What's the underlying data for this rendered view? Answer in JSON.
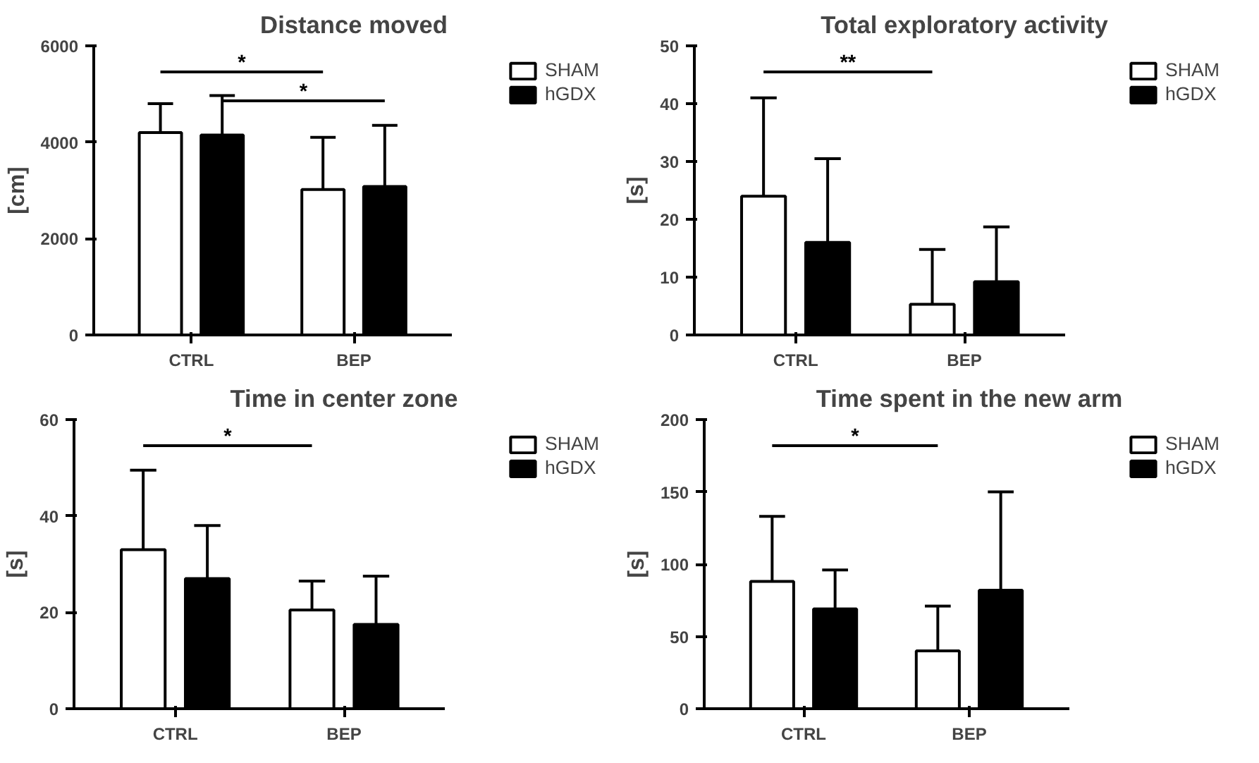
{
  "chart_data": [
    {
      "type": "bar",
      "title": "Distance moved",
      "ylabel": "[cm]",
      "categories": [
        "CTRL",
        "BEP"
      ],
      "ylim": [
        0,
        6000
      ],
      "yticks": [
        0,
        2000,
        4000,
        6000
      ],
      "legend": "top right",
      "grid": false,
      "annotations": [
        "*",
        "*"
      ],
      "series": [
        {
          "name": "SHAM",
          "color": "#ffffff",
          "values": [
            4200,
            3020
          ],
          "errors": [
            [
              4200,
              4800
            ],
            [
              3020,
              4100
            ]
          ]
        },
        {
          "name": "hGDX",
          "color": "#000000",
          "values": [
            4150,
            3080
          ],
          "errors": [
            [
              4150,
              4970
            ],
            [
              3080,
              4350
            ]
          ]
        }
      ]
    },
    {
      "type": "bar",
      "title": "Total exploratory activity",
      "ylabel": "[s]",
      "categories": [
        "CTRL",
        "BEP"
      ],
      "ylim": [
        0,
        50
      ],
      "yticks": [
        0,
        10,
        20,
        30,
        40,
        50
      ],
      "legend": "top right",
      "grid": false,
      "annotations": [
        "**"
      ],
      "series": [
        {
          "name": "SHAM",
          "color": "#ffffff",
          "values": [
            24,
            5.3
          ],
          "errors": [
            [
              24,
              41
            ],
            [
              5.3,
              14.8
            ]
          ]
        },
        {
          "name": "hGDX",
          "color": "#000000",
          "values": [
            16,
            9.2
          ],
          "errors": [
            [
              16,
              30.5
            ],
            [
              9.2,
              18.7
            ]
          ]
        }
      ]
    },
    {
      "type": "bar",
      "title": "Time in center zone",
      "ylabel": "[s]",
      "categories": [
        "CTRL",
        "BEP"
      ],
      "ylim": [
        0,
        60
      ],
      "yticks": [
        0,
        20,
        40,
        60
      ],
      "legend": "top right",
      "grid": false,
      "annotations": [
        "*"
      ],
      "series": [
        {
          "name": "SHAM",
          "color": "#ffffff",
          "values": [
            33,
            20.5
          ],
          "errors": [
            [
              33,
              49.5
            ],
            [
              20.5,
              26.5
            ]
          ]
        },
        {
          "name": "hGDX",
          "color": "#000000",
          "values": [
            27,
            17.5
          ],
          "errors": [
            [
              27,
              38
            ],
            [
              17.5,
              27.5
            ]
          ]
        }
      ]
    },
    {
      "type": "bar",
      "title": "Time spent in the new arm",
      "ylabel": "[s]",
      "categories": [
        "CTRL",
        "BEP"
      ],
      "ylim": [
        0,
        200
      ],
      "yticks": [
        0,
        50,
        100,
        150,
        200
      ],
      "legend": "top right",
      "grid": false,
      "annotations": [
        "*"
      ],
      "series": [
        {
          "name": "SHAM",
          "color": "#ffffff",
          "values": [
            88,
            40
          ],
          "errors": [
            [
              88,
              133
            ],
            [
              40,
              71
            ]
          ]
        },
        {
          "name": "hGDX",
          "color": "#000000",
          "values": [
            69,
            82
          ],
          "errors": [
            [
              69,
              96
            ],
            [
              82,
              150
            ]
          ]
        }
      ]
    }
  ]
}
